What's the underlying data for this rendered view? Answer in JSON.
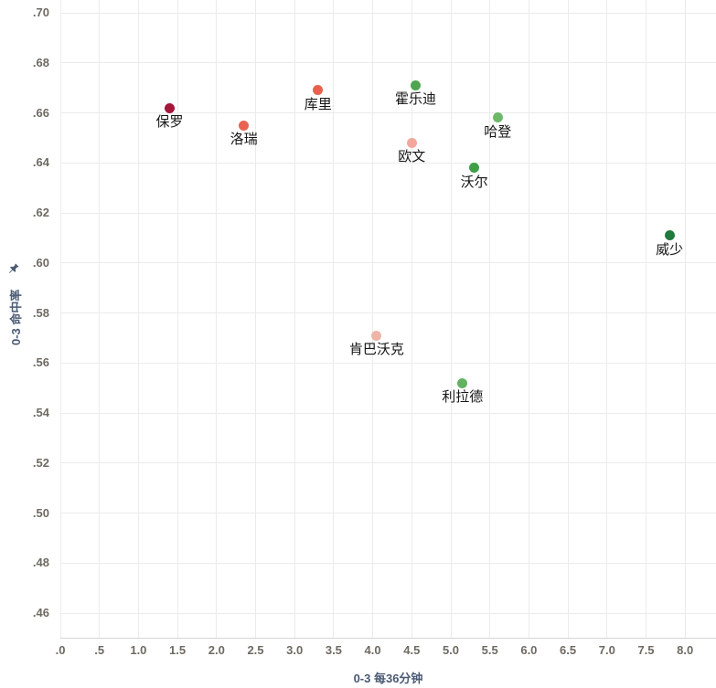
{
  "chart_data": {
    "type": "scatter",
    "title": "",
    "xlabel": "0-3 每36分钟",
    "ylabel": "0-3 命中率",
    "xlim": [
      0,
      8.4
    ],
    "ylim": [
      0.45,
      0.705
    ],
    "grid": true,
    "legend": "none",
    "x_ticks": {
      "labels": [
        ".0",
        ".5",
        "1.0",
        "1.5",
        "2.0",
        "2.5",
        "3.0",
        "3.5",
        "4.0",
        "4.5",
        "5.0",
        "5.5",
        "6.0",
        "6.5",
        "7.0",
        "7.5",
        "8.0"
      ],
      "values": [
        0,
        0.5,
        1.0,
        1.5,
        2.0,
        2.5,
        3.0,
        3.5,
        4.0,
        4.5,
        5.0,
        5.5,
        6.0,
        6.5,
        7.0,
        7.5,
        8.0
      ]
    },
    "y_ticks": {
      "labels": [
        ".70",
        ".68",
        ".66",
        ".64",
        ".62",
        ".60",
        ".58",
        ".56",
        ".54",
        ".52",
        ".50",
        ".48",
        ".46"
      ],
      "values": [
        0.7,
        0.68,
        0.66,
        0.64,
        0.62,
        0.6,
        0.58,
        0.56,
        0.54,
        0.52,
        0.5,
        0.48,
        0.46
      ]
    },
    "points": [
      {
        "label": "保罗",
        "x": 1.4,
        "y": 0.662,
        "color": "#a5163a"
      },
      {
        "label": "洛瑞",
        "x": 2.35,
        "y": 0.655,
        "color": "#e96352"
      },
      {
        "label": "库里",
        "x": 3.3,
        "y": 0.669,
        "color": "#e8604f"
      },
      {
        "label": "霍乐迪",
        "x": 4.55,
        "y": 0.671,
        "color": "#4da64f"
      },
      {
        "label": "欧文",
        "x": 4.5,
        "y": 0.648,
        "color": "#f3a79c"
      },
      {
        "label": "哈登",
        "x": 5.6,
        "y": 0.658,
        "color": "#6db869"
      },
      {
        "label": "沃尔",
        "x": 5.3,
        "y": 0.638,
        "color": "#3f9f48"
      },
      {
        "label": "威少",
        "x": 7.8,
        "y": 0.611,
        "color": "#1f7a3d"
      },
      {
        "label": "肯巴沃克",
        "x": 4.05,
        "y": 0.571,
        "color": "#efb4a8"
      },
      {
        "label": "利拉德",
        "x": 5.15,
        "y": 0.552,
        "color": "#63b262"
      }
    ]
  },
  "icons": {
    "y_axis_pin": "pin-icon"
  },
  "colors": {
    "background": "#ffffff",
    "gridline": "#ebebeb",
    "axis_line": "#d5d5d5",
    "tick_label": "#6e6a62",
    "axis_title": "#4a5a73",
    "point_label": "#151515"
  }
}
